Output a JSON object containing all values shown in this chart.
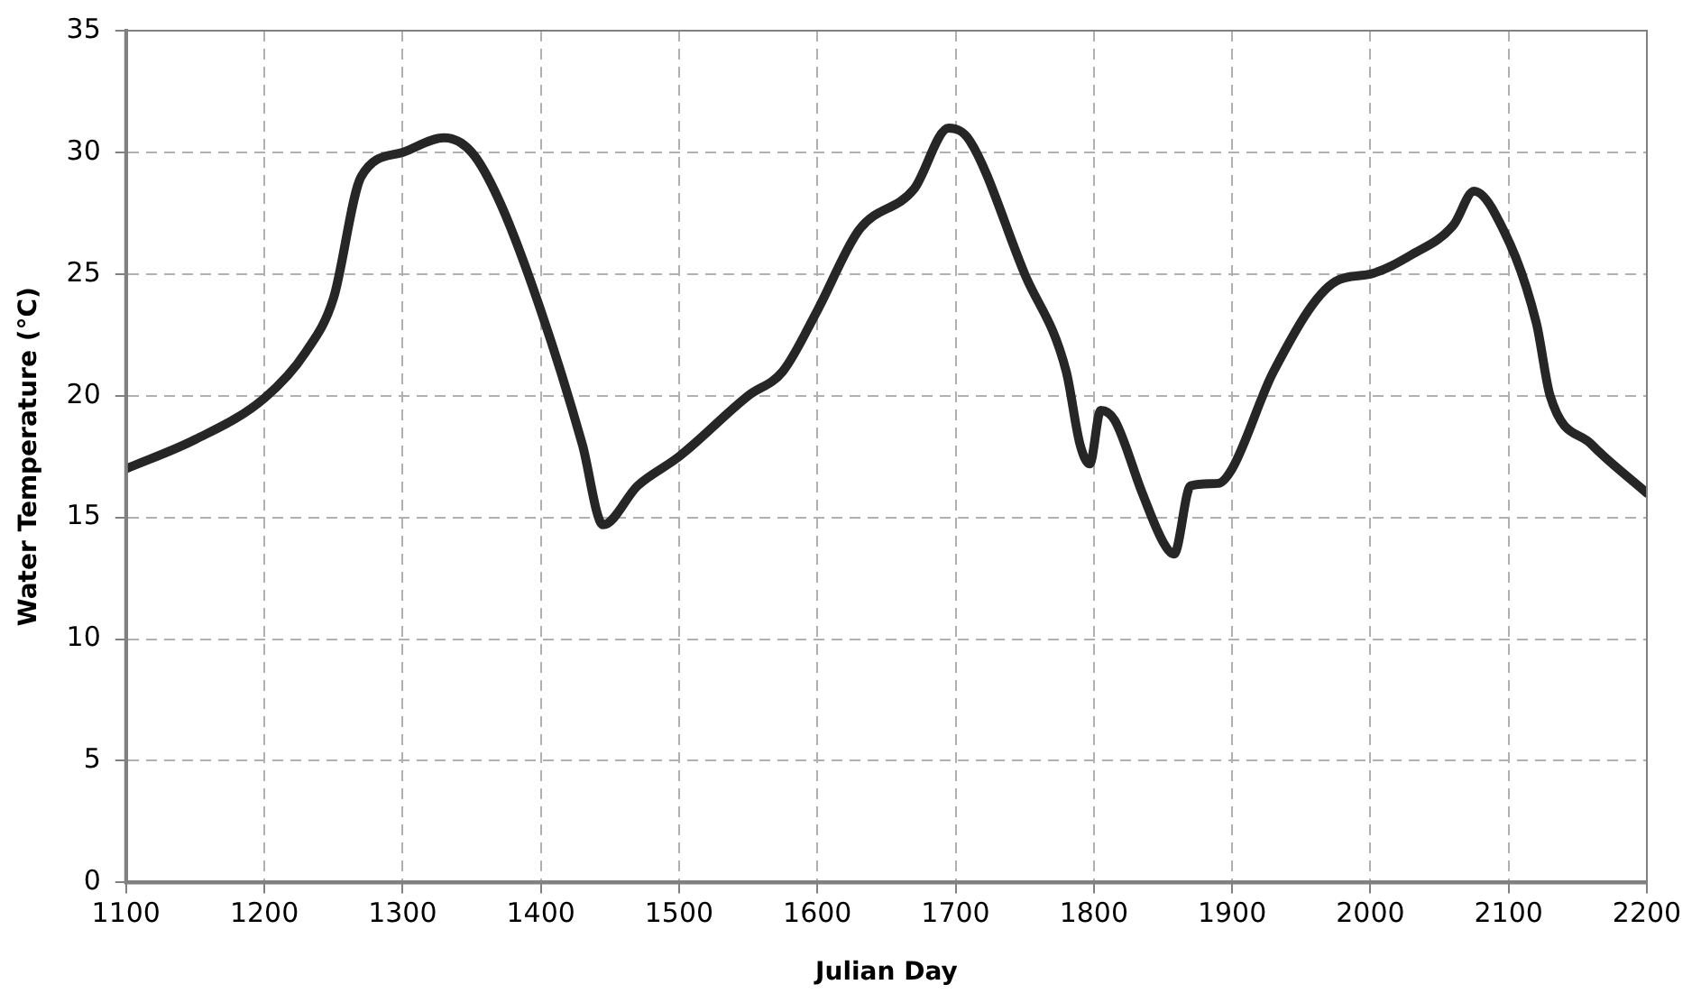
{
  "chart_data": {
    "type": "line",
    "xlabel": "Julian Day",
    "ylabel": "Water Temperature (°C)",
    "x": [
      1100,
      1150,
      1200,
      1230,
      1250,
      1270,
      1300,
      1330,
      1350,
      1370,
      1400,
      1430,
      1445,
      1470,
      1500,
      1550,
      1575,
      1600,
      1630,
      1670,
      1695,
      1710,
      1750,
      1780,
      1790,
      1797,
      1805,
      1815,
      1835,
      1850,
      1858,
      1870,
      1890,
      1900,
      1930,
      1975,
      2000,
      2030,
      2060,
      2075,
      2090,
      2120,
      2130,
      2160,
      2200
    ],
    "series": [
      {
        "color": "#262626",
        "values": [
          17,
          18.2,
          19.9,
          21.8,
          24,
          29,
          30,
          30.6,
          30,
          28,
          23.5,
          18,
          14.7,
          16.3,
          17.5,
          20,
          21,
          23.5,
          26.8,
          28.5,
          31,
          30.5,
          25,
          21,
          18,
          17.2,
          19.4,
          19,
          16,
          14,
          13.5,
          16.3,
          16.4,
          17,
          21,
          24.7,
          25,
          25.8,
          27,
          28.4,
          27.5,
          23,
          20,
          18,
          16
        ]
      }
    ],
    "xlim": [
      1100,
      2200
    ],
    "xticks": [
      1100,
      1200,
      1300,
      1400,
      1500,
      1600,
      1700,
      1800,
      1900,
      2000,
      2100,
      2200
    ],
    "ylim": [
      0,
      35
    ],
    "yticks": [
      0,
      5,
      10,
      15,
      20,
      25,
      30,
      35
    ],
    "grid": true,
    "legend": false,
    "marker": "none",
    "line_style": "solid"
  }
}
